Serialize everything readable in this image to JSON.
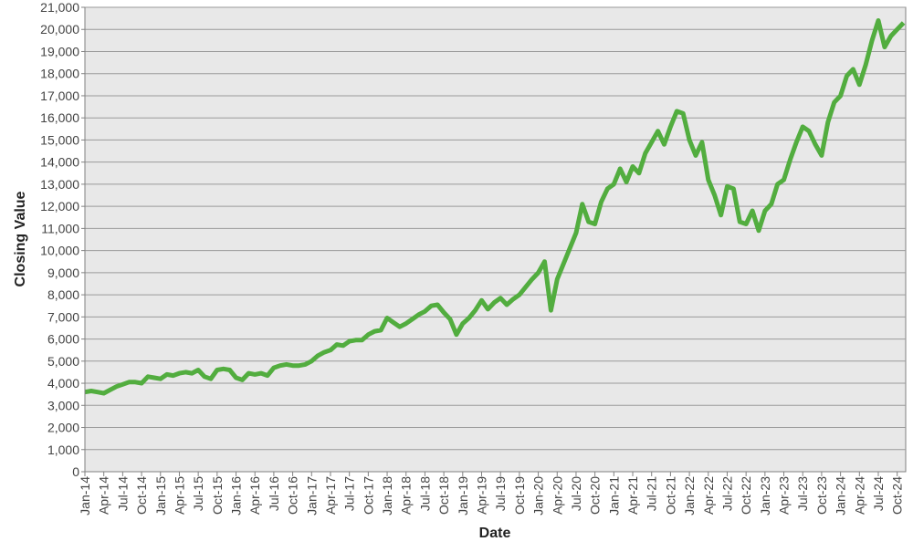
{
  "chart_data": {
    "type": "line",
    "title": "",
    "xlabel": "Date",
    "ylabel": "Closing Value",
    "ylim": [
      0,
      21000
    ],
    "xlim": [
      "2014-01",
      "2024-11"
    ],
    "grid": "horizontal",
    "legend": "none",
    "colors": {
      "line": "#52ad3f",
      "plot_bg": "#e8e8e8",
      "grid": "#9a9a9a",
      "axis": "#808080"
    },
    "y_ticks": [
      "0",
      "1,000",
      "2,000",
      "3,000",
      "4,000",
      "5,000",
      "6,000",
      "7,000",
      "8,000",
      "9,000",
      "10,000",
      "11,000",
      "12,000",
      "13,000",
      "14,000",
      "15,000",
      "16,000",
      "17,000",
      "18,000",
      "19,000",
      "20,000",
      "21,000"
    ],
    "x_ticks": [
      "Jan-14",
      "Apr-14",
      "Jul-14",
      "Oct-14",
      "Jan-15",
      "Apr-15",
      "Jul-15",
      "Oct-15",
      "Jan-16",
      "Apr-16",
      "Jul-16",
      "Oct-16",
      "Jan-17",
      "Apr-17",
      "Jul-17",
      "Oct-17",
      "Jan-18",
      "Apr-18",
      "Jul-18",
      "Oct-18",
      "Jan-19",
      "Apr-19",
      "Jul-19",
      "Oct-19",
      "Jan-20",
      "Apr-20",
      "Jul-20",
      "Oct-20",
      "Jan-21",
      "Apr-21",
      "Jul-21",
      "Oct-21",
      "Jan-22",
      "Apr-22",
      "Jul-22",
      "Oct-22",
      "Jan-23",
      "Apr-23",
      "Jul-23",
      "Oct-23",
      "Jan-24",
      "Apr-24",
      "Jul-24",
      "Oct-24"
    ],
    "series": [
      {
        "x": [
          "2014-01",
          "2014-02",
          "2014-03",
          "2014-04",
          "2014-05",
          "2014-06",
          "2014-07",
          "2014-08",
          "2014-09",
          "2014-10",
          "2014-11",
          "2014-12",
          "2015-01",
          "2015-02",
          "2015-03",
          "2015-04",
          "2015-05",
          "2015-06",
          "2015-07",
          "2015-08",
          "2015-09",
          "2015-10",
          "2015-11",
          "2015-12",
          "2016-01",
          "2016-02",
          "2016-03",
          "2016-04",
          "2016-05",
          "2016-06",
          "2016-07",
          "2016-08",
          "2016-09",
          "2016-10",
          "2016-11",
          "2016-12",
          "2017-01",
          "2017-02",
          "2017-03",
          "2017-04",
          "2017-05",
          "2017-06",
          "2017-07",
          "2017-08",
          "2017-09",
          "2017-10",
          "2017-11",
          "2017-12",
          "2018-01",
          "2018-02",
          "2018-03",
          "2018-04",
          "2018-05",
          "2018-06",
          "2018-07",
          "2018-08",
          "2018-09",
          "2018-10",
          "2018-11",
          "2018-12",
          "2019-01",
          "2019-02",
          "2019-03",
          "2019-04",
          "2019-05",
          "2019-06",
          "2019-07",
          "2019-08",
          "2019-09",
          "2019-10",
          "2019-11",
          "2019-12",
          "2020-01",
          "2020-02",
          "2020-03",
          "2020-04",
          "2020-05",
          "2020-06",
          "2020-07",
          "2020-08",
          "2020-09",
          "2020-10",
          "2020-11",
          "2020-12",
          "2021-01",
          "2021-02",
          "2021-03",
          "2021-04",
          "2021-05",
          "2021-06",
          "2021-07",
          "2021-08",
          "2021-09",
          "2021-10",
          "2021-11",
          "2021-12",
          "2022-01",
          "2022-02",
          "2022-03",
          "2022-04",
          "2022-05",
          "2022-06",
          "2022-07",
          "2022-08",
          "2022-09",
          "2022-10",
          "2022-11",
          "2022-12",
          "2023-01",
          "2023-02",
          "2023-03",
          "2023-04",
          "2023-05",
          "2023-06",
          "2023-07",
          "2023-08",
          "2023-09",
          "2023-10",
          "2023-11",
          "2023-12",
          "2024-01",
          "2024-02",
          "2024-03",
          "2024-04",
          "2024-05",
          "2024-06",
          "2024-07",
          "2024-08",
          "2024-09",
          "2024-10",
          "2024-11"
        ],
        "y": [
          3600,
          3650,
          3600,
          3550,
          3700,
          3850,
          3950,
          4050,
          4050,
          4000,
          4300,
          4250,
          4200,
          4400,
          4350,
          4450,
          4500,
          4450,
          4600,
          4300,
          4200,
          4600,
          4650,
          4600,
          4250,
          4150,
          4450,
          4400,
          4450,
          4350,
          4700,
          4800,
          4850,
          4800,
          4800,
          4850,
          5000,
          5250,
          5400,
          5500,
          5750,
          5700,
          5900,
          5950,
          5950,
          6200,
          6350,
          6400,
          6950,
          6750,
          6550,
          6700,
          6900,
          7100,
          7250,
          7500,
          7550,
          7200,
          6900,
          6200,
          6700,
          6950,
          7300,
          7750,
          7350,
          7650,
          7850,
          7550,
          7800,
          8000,
          8350,
          8700,
          9000,
          9500,
          7300,
          8700,
          9400,
          10100,
          10800,
          12100,
          11300,
          11200,
          12200,
          12800,
          13000,
          13700,
          13100,
          13800,
          13500,
          14400,
          14900,
          15400,
          14800,
          15600,
          16300,
          16200,
          15000,
          14300,
          14900,
          13200,
          12500,
          11600,
          12900,
          12800,
          11300,
          11200,
          11800,
          10900,
          11800,
          12100,
          13000,
          13200,
          14100,
          14900,
          15600,
          15400,
          14800,
          14300,
          15800,
          16700,
          17000,
          17900,
          18200,
          17500,
          18400,
          19500,
          20400,
          19200,
          19700,
          20000,
          20300
        ]
      }
    ]
  }
}
